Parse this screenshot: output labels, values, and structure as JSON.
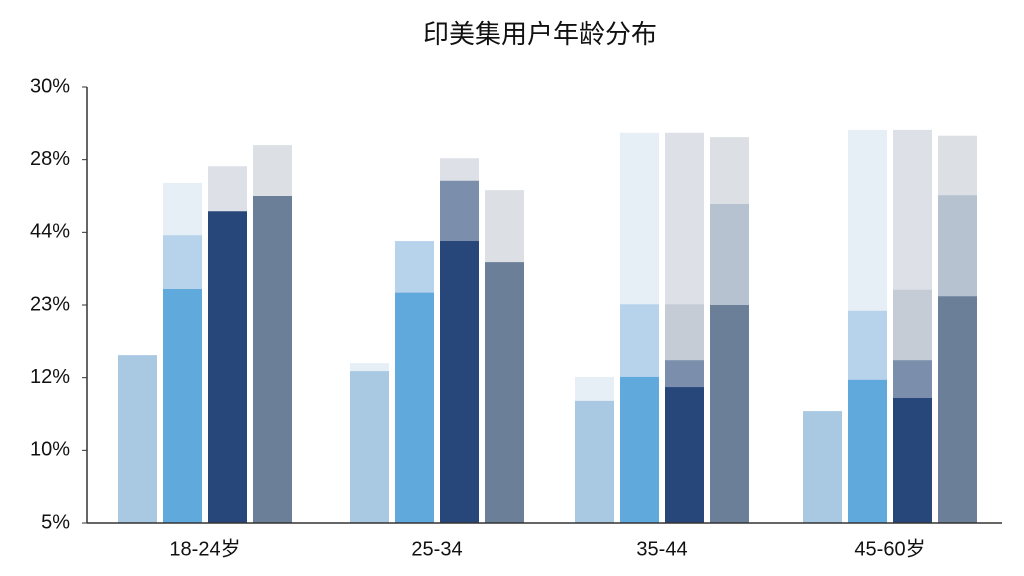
{
  "chart_data": {
    "type": "bar",
    "title": "印美集用户年龄分布",
    "categories": [
      "18-24岁",
      "25-34",
      "35-44",
      "45-60岁"
    ],
    "ylim": [
      0,
      6
    ],
    "yticks": [
      {
        "value": 0,
        "label": "5%"
      },
      {
        "value": 1,
        "label": "10%"
      },
      {
        "value": 2,
        "label": "12%"
      },
      {
        "value": 3,
        "label": "23%"
      },
      {
        "value": 4,
        "label": "44%"
      },
      {
        "value": 5,
        "label": "28%"
      },
      {
        "value": 6,
        "label": "30%"
      }
    ],
    "series": [
      {
        "slot": 0,
        "color": "#e6eef6",
        "values": [
          null,
          2.2,
          2.01,
          null
        ]
      },
      {
        "slot": 0,
        "color": "#a9c8e2",
        "values": [
          2.31,
          2.09,
          1.68,
          1.54
        ]
      },
      {
        "slot": 1,
        "color": "#e6eef6",
        "values": [
          4.68,
          null,
          5.37,
          5.41
        ]
      },
      {
        "slot": 1,
        "color": "#b7d3ec",
        "values": [
          3.96,
          3.88,
          3.01,
          2.92
        ]
      },
      {
        "slot": 1,
        "color": "#5fa9dc",
        "values": [
          3.22,
          3.17,
          2.01,
          1.97
        ]
      },
      {
        "slot": 2,
        "color": "#dde1e7",
        "values": [
          4.91,
          5.02,
          5.37,
          5.41
        ]
      },
      {
        "slot": 2,
        "color": "#c5ccd6",
        "values": [
          null,
          null,
          3.01,
          3.21
        ]
      },
      {
        "slot": 2,
        "color": "#7b8eab",
        "values": [
          null,
          4.71,
          2.24,
          2.24
        ]
      },
      {
        "slot": 2,
        "color": "#27467a",
        "values": [
          4.29,
          3.88,
          1.87,
          1.72
        ]
      },
      {
        "slot": 3,
        "color": "#dcdfe3",
        "values": [
          5.2,
          4.58,
          5.31,
          5.33
        ]
      },
      {
        "slot": 3,
        "color": "#b6c2cf",
        "values": [
          null,
          null,
          4.39,
          4.51
        ]
      },
      {
        "slot": 3,
        "color": "#6b7f98",
        "values": [
          4.5,
          3.59,
          3.0,
          3.12
        ]
      }
    ]
  }
}
